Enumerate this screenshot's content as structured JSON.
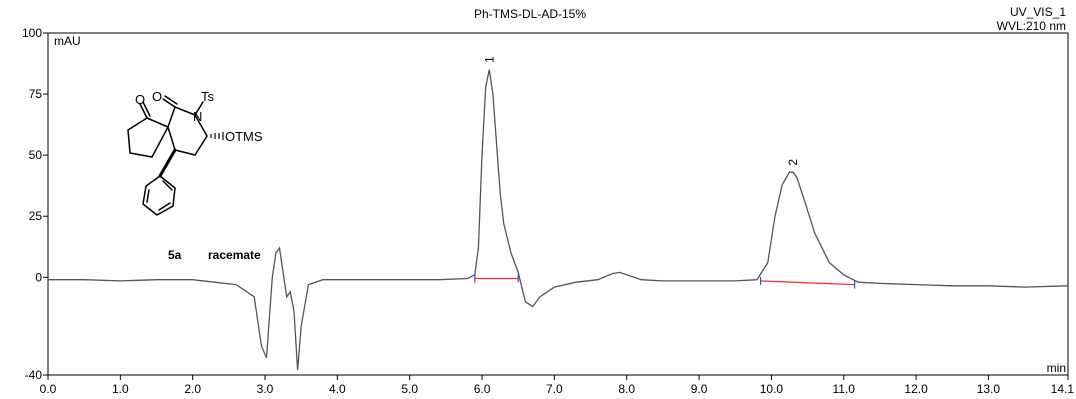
{
  "chart_data": {
    "type": "line",
    "title": "Ph-TMS-DL-AD-15%",
    "header_right": [
      "UV_VIS_1",
      "WVL:210 nm"
    ],
    "xlabel": "min",
    "ylabel": "mAU",
    "xlim": [
      0.0,
      14.1
    ],
    "ylim": [
      -40,
      100
    ],
    "x_ticks": [
      "0.0",
      "1.0",
      "2.0",
      "3.0",
      "4.0",
      "5.0",
      "6.0",
      "7.0",
      "8.0",
      "9.0",
      "10.0",
      "11.0",
      "12.0",
      "13.0",
      "14.1"
    ],
    "y_ticks": [
      "-40",
      "0",
      "25",
      "50",
      "75",
      "100"
    ],
    "grid": false,
    "series": [
      {
        "x": [
          0.0,
          0.5,
          1.0,
          1.5,
          1.8,
          2.0,
          2.3,
          2.6,
          2.85,
          2.95,
          3.02,
          3.1,
          3.15,
          3.2,
          3.25,
          3.3,
          3.35,
          3.4,
          3.45,
          3.5,
          3.6,
          3.8,
          4.2,
          4.6,
          5.0,
          5.4,
          5.8,
          5.9,
          5.95,
          6.0,
          6.05,
          6.1,
          6.15,
          6.2,
          6.25,
          6.3,
          6.4,
          6.5,
          6.6,
          6.7,
          6.8,
          7.0,
          7.3,
          7.6,
          7.8,
          7.9,
          8.0,
          8.2,
          8.5,
          9.0,
          9.5,
          9.8,
          9.95,
          10.05,
          10.15,
          10.25,
          10.3,
          10.35,
          10.45,
          10.6,
          10.8,
          11.0,
          11.2,
          11.5,
          12.0,
          12.5,
          13.0,
          13.5,
          14.1
        ],
        "y": [
          -1,
          -1,
          -1.5,
          -1,
          -1,
          -1,
          -2,
          -3,
          -8,
          -28,
          -33,
          0,
          10,
          12,
          2,
          -8,
          -6,
          -14,
          -38,
          -20,
          -3,
          -1,
          -1,
          -1,
          -1,
          -1,
          -0.5,
          1,
          12,
          50,
          78,
          85,
          75,
          55,
          35,
          22,
          10,
          2,
          -10,
          -12,
          -8,
          -4,
          -2,
          -1,
          1.5,
          2,
          1,
          -1,
          -1.5,
          -1.5,
          -1.5,
          -1,
          6,
          25,
          38,
          43,
          43,
          41,
          32,
          18,
          6,
          1,
          -2,
          -2.5,
          -3,
          -3.5,
          -3.5,
          -4,
          -3.5
        ]
      }
    ],
    "peaks": [
      {
        "label": "1",
        "x": 6.1,
        "y": 85
      },
      {
        "label": "2",
        "x": 10.3,
        "y": 43
      }
    ],
    "integration_baselines": [
      {
        "from": [
          5.9,
          -0.5
        ],
        "to": [
          6.5,
          -0.5
        ]
      },
      {
        "from": [
          9.85,
          -1.5
        ],
        "to": [
          11.15,
          -3
        ]
      }
    ],
    "annotations": [
      "5a",
      "racemate"
    ],
    "structure_labels": [
      "Ts",
      "N",
      "O",
      "O",
      "OTMS"
    ],
    "colors": {
      "trace": "#555555",
      "baseline": "#ff2a2a",
      "marker": "#2255cc",
      "axis": "#000000"
    }
  }
}
